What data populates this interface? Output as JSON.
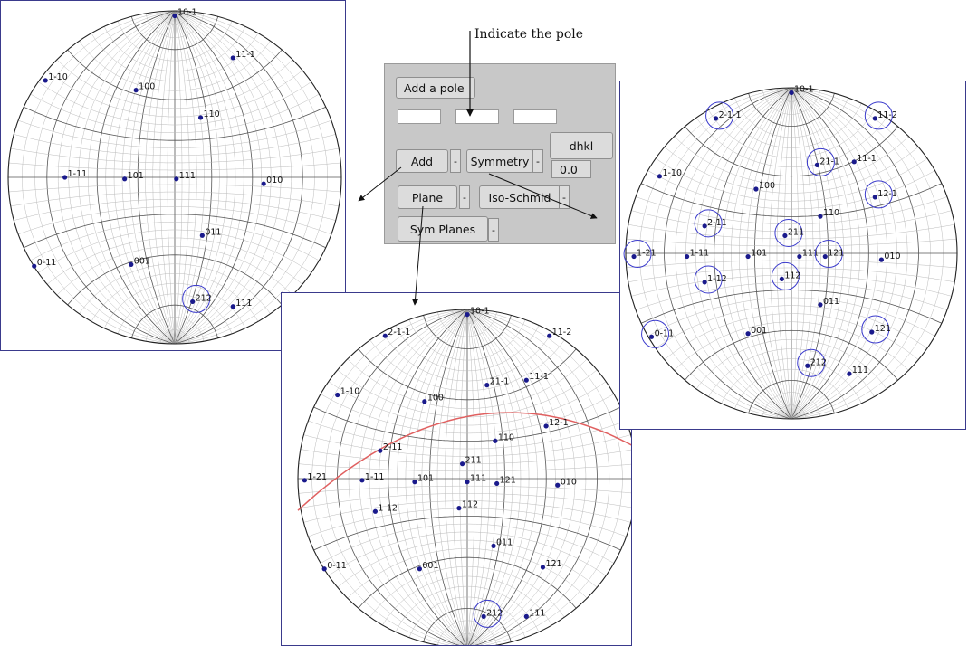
{
  "caption": "Indicate the pole",
  "panel": {
    "add_pole_label": "Add a pole",
    "add_label": "Add",
    "symmetry_label": "Symmetry",
    "dhkl_label": "dhkl",
    "dhkl_value": "0.0",
    "plane_label": "Plane",
    "iso_schmid_label": "Iso-Schmid",
    "sym_planes_label": "Sym Planes",
    "dropdown_label": "-"
  },
  "colors": {
    "pole": "#1a1a8c",
    "circle": "#3a3acc",
    "plane_trace": "#e06060",
    "net_major": "#555555",
    "net_minor": "#bbbbbb",
    "frame": "#3a3a8c"
  },
  "projections": [
    {
      "id": "left",
      "poles": [
        {
          "label": "10-1",
          "u": 0.0,
          "v": -1.0
        },
        {
          "label": "11-1",
          "u": 0.36,
          "v": -0.74
        },
        {
          "label": "1-10",
          "u": -0.8,
          "v": -0.6
        },
        {
          "label": "100",
          "u": -0.24,
          "v": -0.54
        },
        {
          "label": "110",
          "u": 0.16,
          "v": -0.37
        },
        {
          "label": "1-11",
          "u": -0.68,
          "v": 0.0
        },
        {
          "label": "101",
          "u": -0.31,
          "v": 0.01
        },
        {
          "label": "111",
          "u": 0.01,
          "v": 0.01
        },
        {
          "label": "010",
          "u": 0.55,
          "v": 0.04
        },
        {
          "label": "011",
          "u": 0.17,
          "v": 0.36
        },
        {
          "label": "0-11",
          "u": -0.87,
          "v": 0.55
        },
        {
          "label": "001",
          "u": -0.27,
          "v": 0.54
        },
        {
          "label": "212",
          "u": 0.11,
          "v": 0.77
        },
        {
          "label": "111",
          "u": 0.36,
          "v": 0.8
        }
      ],
      "circled": [
        "212"
      ]
    },
    {
      "id": "bottom",
      "poles": [
        {
          "label": "10-1",
          "u": 0.0,
          "v": -1.0
        },
        {
          "label": "2-1-1",
          "u": -0.5,
          "v": -0.87
        },
        {
          "label": "11-2",
          "u": 0.5,
          "v": -0.87
        },
        {
          "label": "21-1",
          "u": 0.12,
          "v": -0.57
        },
        {
          "label": "11-1",
          "u": 0.36,
          "v": -0.6
        },
        {
          "label": "1-10",
          "u": -0.79,
          "v": -0.51
        },
        {
          "label": "100",
          "u": -0.26,
          "v": -0.47
        },
        {
          "label": "12-1",
          "u": 0.48,
          "v": -0.32
        },
        {
          "label": "110",
          "u": 0.17,
          "v": -0.23
        },
        {
          "label": "2-11",
          "u": -0.53,
          "v": -0.17
        },
        {
          "label": "211",
          "u": -0.03,
          "v": -0.09
        },
        {
          "label": "1-21",
          "u": -0.99,
          "v": 0.01
        },
        {
          "label": "1-11",
          "u": -0.64,
          "v": 0.01
        },
        {
          "label": "101",
          "u": -0.32,
          "v": 0.02
        },
        {
          "label": "111",
          "u": 0.0,
          "v": 0.02
        },
        {
          "label": "121",
          "u": 0.18,
          "v": 0.03
        },
        {
          "label": "010",
          "u": 0.55,
          "v": 0.04
        },
        {
          "label": "1-12",
          "u": -0.56,
          "v": 0.2
        },
        {
          "label": "112",
          "u": -0.05,
          "v": 0.18
        },
        {
          "label": "011",
          "u": 0.16,
          "v": 0.41
        },
        {
          "label": "0-11",
          "u": -0.87,
          "v": 0.55
        },
        {
          "label": "001",
          "u": -0.29,
          "v": 0.55
        },
        {
          "label": "121",
          "u": 0.46,
          "v": 0.54
        },
        {
          "label": "212",
          "u": 0.1,
          "v": 0.84
        },
        {
          "label": "111",
          "u": 0.36,
          "v": 0.84
        }
      ],
      "circled": [
        "212"
      ],
      "trace": true
    },
    {
      "id": "right",
      "poles": [
        {
          "label": "10-1",
          "u": 0.0,
          "v": -1.0
        },
        {
          "label": "2-1-1",
          "u": -0.47,
          "v": -0.84
        },
        {
          "label": "11-2",
          "u": 0.52,
          "v": -0.84
        },
        {
          "label": "21-1",
          "u": 0.16,
          "v": -0.55
        },
        {
          "label": "11-1",
          "u": 0.39,
          "v": -0.57
        },
        {
          "label": "1-10",
          "u": -0.82,
          "v": -0.48
        },
        {
          "label": "100",
          "u": -0.22,
          "v": -0.4
        },
        {
          "label": "12-1",
          "u": 0.52,
          "v": -0.35
        },
        {
          "label": "110",
          "u": 0.18,
          "v": -0.23
        },
        {
          "label": "2-11",
          "u": -0.54,
          "v": -0.17
        },
        {
          "label": "211",
          "u": -0.04,
          "v": -0.11
        },
        {
          "label": "1-21",
          "u": -0.98,
          "v": 0.02
        },
        {
          "label": "1-11",
          "u": -0.65,
          "v": 0.02
        },
        {
          "label": "101",
          "u": -0.27,
          "v": 0.02
        },
        {
          "label": "111",
          "u": 0.05,
          "v": 0.02
        },
        {
          "label": "121",
          "u": 0.21,
          "v": 0.02
        },
        {
          "label": "010",
          "u": 0.56,
          "v": 0.04
        },
        {
          "label": "1-12",
          "u": -0.54,
          "v": 0.18
        },
        {
          "label": "112",
          "u": -0.06,
          "v": 0.16
        },
        {
          "label": "011",
          "u": 0.18,
          "v": 0.32
        },
        {
          "label": "0-11",
          "u": -0.87,
          "v": 0.52
        },
        {
          "label": "001",
          "u": -0.27,
          "v": 0.5
        },
        {
          "label": "121",
          "u": 0.5,
          "v": 0.49
        },
        {
          "label": "212",
          "u": 0.1,
          "v": 0.7
        },
        {
          "label": "111",
          "u": 0.36,
          "v": 0.75
        }
      ],
      "circled": [
        "2-1-1",
        "11-2",
        "21-1",
        "12-1",
        "2-11",
        "211",
        "1-21",
        "121",
        "1-12",
        "112",
        "0-11",
        "121",
        "212"
      ]
    }
  ]
}
